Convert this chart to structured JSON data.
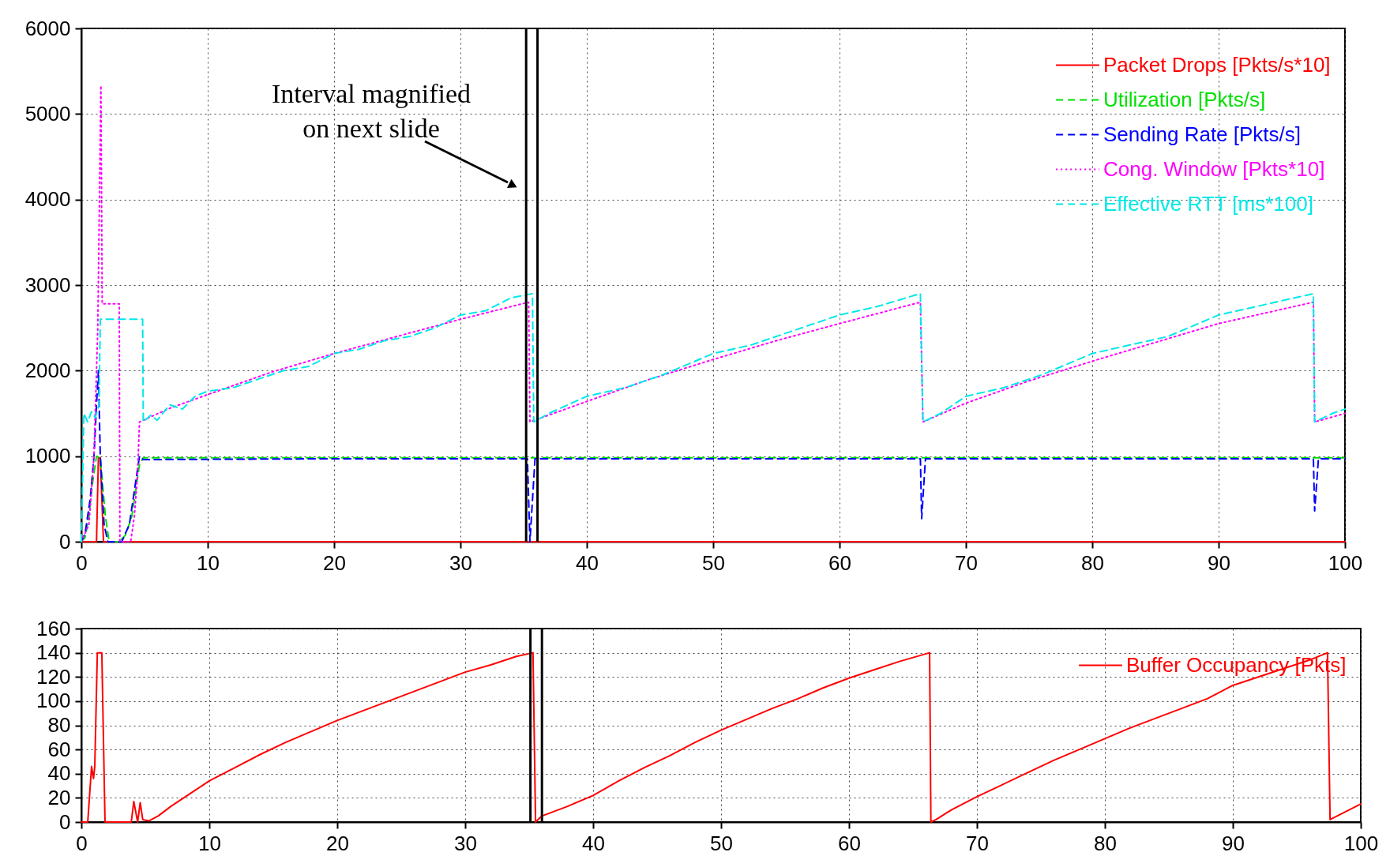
{
  "chart_data": [
    {
      "type": "line",
      "xlim": [
        0,
        100
      ],
      "xticks": [
        0,
        10,
        20,
        30,
        40,
        50,
        60,
        70,
        80,
        90,
        100
      ],
      "ylim": [
        0,
        6000
      ],
      "yticks": [
        0,
        1000,
        2000,
        3000,
        4000,
        5000,
        6000
      ],
      "grid": true,
      "legend": "top right",
      "series": [
        {
          "name": "Packet Drops [Pkts/s*10]",
          "color": "#ff0000",
          "line_style": "solid",
          "x": [
            0,
            1.2,
            1.35,
            1.5,
            1.75,
            100
          ],
          "values": [
            0,
            0,
            980,
            980,
            0,
            0
          ]
        },
        {
          "name": "Utilization [Pkts/s]",
          "color": "#00e000",
          "line_style": "dashed",
          "x": [
            0,
            0.3,
            0.6,
            0.9,
            1.2,
            1.5,
            1.9,
            2.2,
            3.0,
            3.5,
            4.0,
            4.3,
            4.6,
            4.9,
            20,
            35.3,
            50,
            66.4,
            80,
            97.5,
            100
          ],
          "values": [
            0,
            50,
            300,
            700,
            1000,
            980,
            300,
            0,
            0,
            80,
            300,
            600,
            900,
            980,
            980,
            980,
            980,
            980,
            980,
            980,
            980
          ]
        },
        {
          "name": "Sending Rate [Pkts/s]",
          "color": "#0000ff",
          "line_style": "dashed",
          "x": [
            0,
            0.3,
            0.7,
            1.0,
            1.2,
            1.35,
            1.5,
            1.8,
            2.1,
            3.2,
            3.8,
            4.3,
            4.6,
            4.9,
            20,
            35.3,
            35.5,
            35.9,
            50,
            66.4,
            66.5,
            66.8,
            80,
            97.5,
            97.6,
            97.9,
            100
          ],
          "values": [
            0,
            100,
            500,
            1000,
            1600,
            2000,
            1000,
            200,
            0,
            0,
            200,
            700,
            1000,
            960,
            970,
            970,
            0,
            970,
            970,
            970,
            270,
            970,
            970,
            970,
            360,
            970,
            970
          ]
        },
        {
          "name": "Cong. Window [Pkts*10]",
          "color": "#ff00ff",
          "line_style": "dotted",
          "x": [
            0,
            0.6,
            1.0,
            1.3,
            1.55,
            1.65,
            3.0,
            3.05,
            3.9,
            4.2,
            4.45,
            4.6,
            7,
            10,
            15,
            20,
            25,
            30,
            35.4,
            35.5,
            40,
            45,
            50,
            55,
            60,
            66.4,
            66.6,
            70,
            75,
            80,
            85,
            90,
            97.5,
            97.6,
            100
          ],
          "values": [
            0,
            200,
            1000,
            2500,
            5330,
            2780,
            2780,
            0,
            0,
            300,
            800,
            1400,
            1560,
            1720,
            1980,
            2200,
            2400,
            2600,
            2800,
            1400,
            1640,
            1900,
            2130,
            2350,
            2550,
            2800,
            1400,
            1620,
            1880,
            2110,
            2330,
            2550,
            2800,
            1400,
            1500
          ]
        },
        {
          "name": "Effective RTT [ms*100]",
          "color": "#00e8e8",
          "line_style": "dashed",
          "x": [
            0,
            0.2,
            0.5,
            0.8,
            1.1,
            1.4,
            1.5,
            4.85,
            4.9,
            5.5,
            6,
            7,
            8,
            9,
            10,
            12,
            14,
            16,
            18,
            20,
            22,
            24,
            26,
            28,
            30,
            32,
            34,
            35.7,
            35.8,
            37,
            40,
            43,
            46,
            50,
            53,
            56,
            60,
            63,
            66.4,
            66.6,
            68,
            70,
            73,
            76,
            80,
            83,
            86,
            90,
            93,
            97.5,
            97.6,
            99,
            100
          ],
          "values": [
            0,
            1500,
            1400,
            1520,
            1450,
            1600,
            2600,
            2600,
            1400,
            1480,
            1420,
            1600,
            1550,
            1700,
            1760,
            1800,
            1900,
            2000,
            2050,
            2200,
            2250,
            2350,
            2400,
            2500,
            2650,
            2700,
            2850,
            2900,
            1400,
            1500,
            1700,
            1800,
            1950,
            2200,
            2300,
            2450,
            2650,
            2750,
            2900,
            1400,
            1500,
            1700,
            1800,
            1950,
            2200,
            2300,
            2400,
            2650,
            2750,
            2900,
            1400,
            1500,
            1550
          ]
        }
      ],
      "ref_lines": [
        {
          "axis": "x",
          "value": 35.2,
          "color": "#000000"
        },
        {
          "axis": "x",
          "value": 36.1,
          "color": "#000000"
        }
      ],
      "annotations": [
        "Interval magnified\non next slide"
      ]
    },
    {
      "type": "line",
      "xlim": [
        0,
        100
      ],
      "xticks": [
        0,
        10,
        20,
        30,
        40,
        50,
        60,
        70,
        80,
        90,
        100
      ],
      "ylim": [
        0,
        160
      ],
      "yticks": [
        0,
        20,
        40,
        60,
        80,
        100,
        120,
        140,
        160
      ],
      "grid": true,
      "legend": "top right",
      "series": [
        {
          "name": "Buffer Occupancy [Pkts]",
          "color": "#ff0000",
          "line_style": "solid",
          "x": [
            0,
            0.5,
            0.8,
            0.95,
            1.05,
            1.25,
            1.6,
            1.85,
            3.9,
            4.1,
            4.4,
            4.6,
            4.8,
            5.3,
            6,
            7,
            8,
            9,
            10,
            12,
            14,
            16,
            18,
            20,
            22,
            24,
            26,
            28,
            30,
            32,
            34,
            35.3,
            35.5,
            36,
            38,
            40,
            42,
            44,
            46,
            48,
            50,
            52,
            54,
            56,
            58,
            60,
            62,
            64,
            66.3,
            66.4,
            66.8,
            68,
            70,
            72,
            74,
            76,
            78,
            80,
            82,
            84,
            86,
            88,
            90,
            92,
            94,
            96,
            97.4,
            97.6,
            100
          ],
          "values": [
            0,
            0,
            46,
            36,
            46,
            140,
            140,
            0,
            0,
            17,
            0,
            16,
            2,
            1,
            5,
            13,
            20,
            27,
            34,
            45,
            56,
            66,
            75,
            84,
            92,
            100,
            108,
            116,
            124,
            130,
            137,
            140,
            0,
            5,
            13,
            22,
            34,
            45,
            55,
            66,
            76,
            85,
            94,
            102,
            111,
            119,
            126,
            133,
            140,
            0,
            2,
            10,
            21,
            31,
            41,
            51,
            60,
            69,
            78,
            86,
            94,
            102,
            113,
            120,
            127,
            134,
            140,
            2,
            15
          ]
        }
      ],
      "ref_lines": [
        {
          "axis": "x",
          "value": 35.1,
          "color": "#000000"
        },
        {
          "axis": "x",
          "value": 36.0,
          "color": "#000000"
        }
      ]
    }
  ]
}
